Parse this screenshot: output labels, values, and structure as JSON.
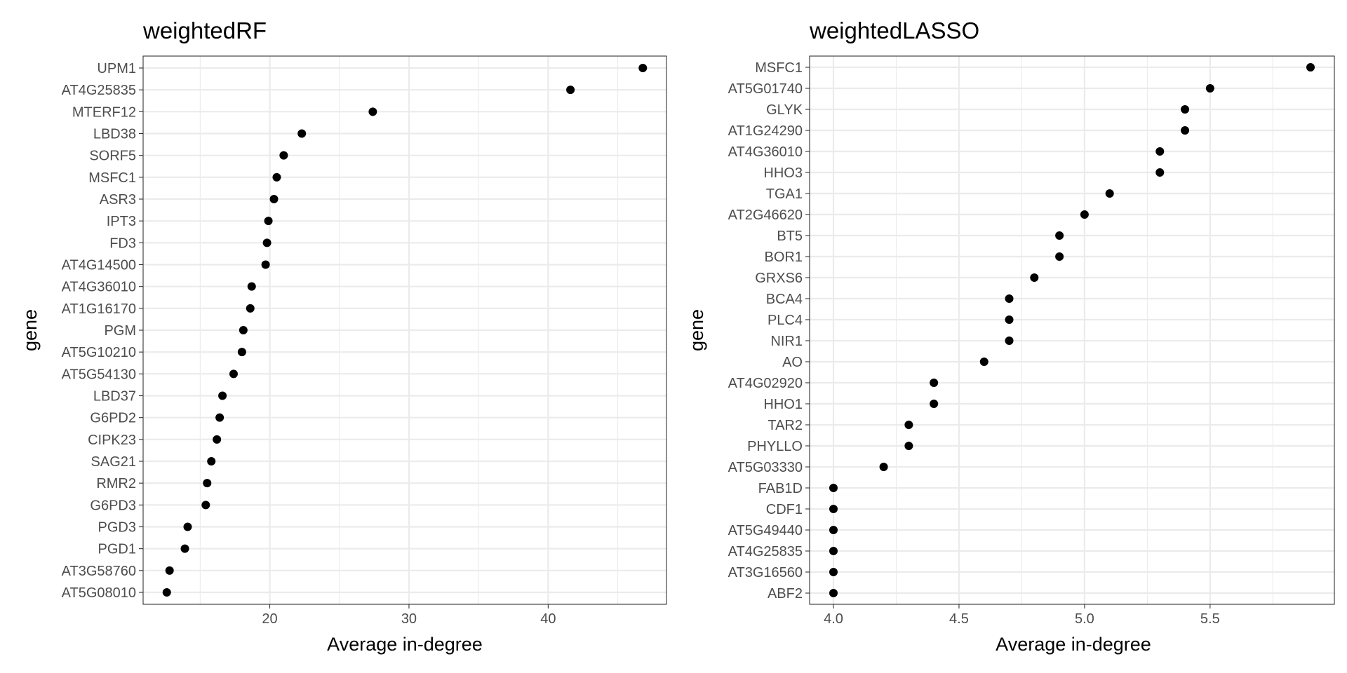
{
  "chart_data": [
    {
      "type": "scatter",
      "title": "weightedRF",
      "xlabel": "Average in-degree",
      "ylabel": "gene",
      "xlim": [
        10.9,
        48.5
      ],
      "x_ticks": [
        20,
        30,
        40
      ],
      "x_minor": [
        15,
        25,
        35,
        45
      ],
      "grid": true,
      "categories": [
        "UPM1",
        "AT4G25835",
        "MTERF12",
        "LBD38",
        "SORF5",
        "MSFC1",
        "ASR3",
        "IPT3",
        "FD3",
        "AT4G14500",
        "AT4G36010",
        "AT1G16170",
        "PGM",
        "AT5G10210",
        "AT5G54130",
        "LBD37",
        "G6PD2",
        "CIPK23",
        "SAG21",
        "RMR2",
        "G6PD3",
        "PGD3",
        "PGD1",
        "AT3G58760",
        "AT5G08010"
      ],
      "values": [
        46.8,
        41.6,
        27.4,
        22.3,
        21.0,
        20.5,
        20.3,
        19.9,
        19.8,
        19.7,
        18.7,
        18.6,
        18.1,
        18.0,
        17.4,
        16.6,
        16.4,
        16.2,
        15.8,
        15.5,
        15.4,
        14.1,
        13.9,
        12.8,
        12.6
      ]
    },
    {
      "type": "scatter",
      "title": "weightedLASSO",
      "xlabel": "Average in-degree",
      "ylabel": "gene",
      "xlim": [
        3.905,
        5.995
      ],
      "x_ticks": [
        4.0,
        4.5,
        5.0,
        5.5
      ],
      "x_tick_labels": [
        "4.0",
        "4.5",
        "5.0",
        "5.5"
      ],
      "x_minor": [
        4.25,
        4.75,
        5.25,
        5.75
      ],
      "grid": true,
      "categories": [
        "MSFC1",
        "AT5G01740",
        "GLYK",
        "AT1G24290",
        "AT4G36010",
        "HHO3",
        "TGA1",
        "AT2G46620",
        "BT5",
        "BOR1",
        "GRXS6",
        "BCA4",
        "PLC4",
        "NIR1",
        "AO",
        "AT4G02920",
        "HHO1",
        "TAR2",
        "PHYLLO",
        "AT5G03330",
        "FAB1D",
        "CDF1",
        "AT5G49440",
        "AT4G25835",
        "AT3G16560",
        "ABF2"
      ],
      "values": [
        5.9,
        5.5,
        5.4,
        5.4,
        5.3,
        5.3,
        5.1,
        5.0,
        4.9,
        4.9,
        4.8,
        4.7,
        4.7,
        4.7,
        4.6,
        4.4,
        4.4,
        4.3,
        4.3,
        4.2,
        4.0,
        4.0,
        4.0,
        4.0,
        4.0,
        4.0
      ]
    }
  ]
}
